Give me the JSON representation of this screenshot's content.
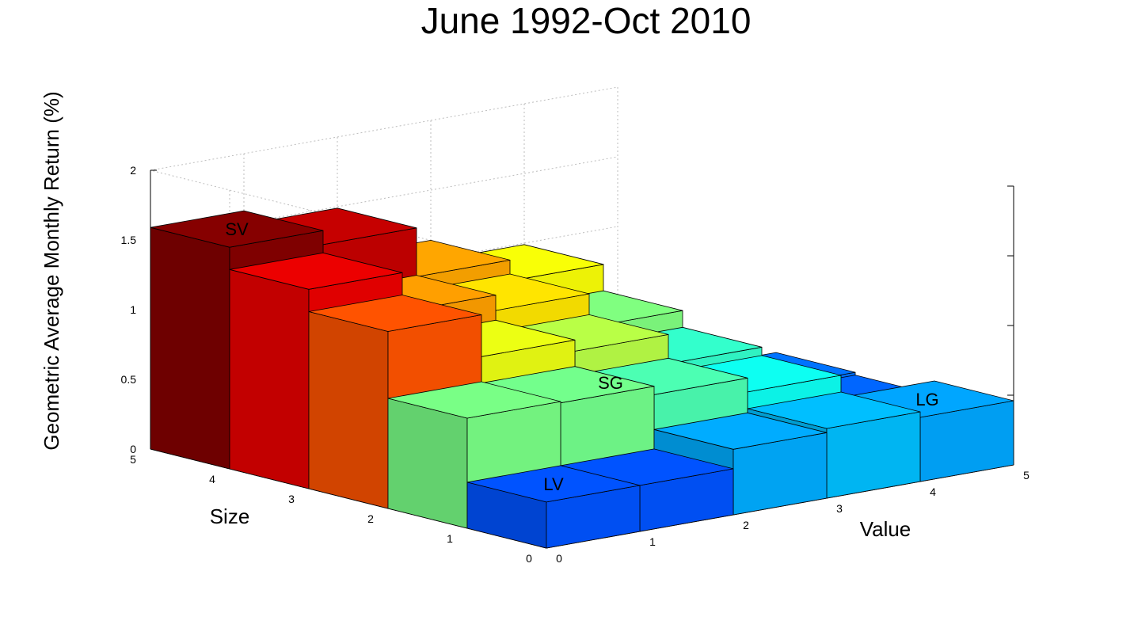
{
  "chart_data": {
    "type": "bar3d",
    "title": "June 1992-Oct 2010",
    "zlabel": "Geometric Average Monthly Return (%)",
    "size_label": "Size",
    "value_label": "Value",
    "size_ticks": [
      "0",
      "1",
      "2",
      "3",
      "4",
      "5"
    ],
    "value_ticks": [
      "0",
      "1",
      "2",
      "3",
      "4",
      "5"
    ],
    "z_ticks": [
      "0",
      "0.5",
      "1",
      "1.5",
      "2"
    ],
    "zlim": [
      0,
      2
    ],
    "rows_are": "size quintile (1 = small ... 5 = large)",
    "cols_are": "value quintile (1 = growth ... 5 = value)",
    "values": [
      [
        0.01,
        0.99,
        1.14,
        1.49,
        1.59
      ],
      [
        0.28,
        0.8,
        1.04,
        1.15,
        1.43
      ],
      [
        0.38,
        0.68,
        0.89,
        0.97,
        1.27
      ],
      [
        0.36,
        0.62,
        0.72,
        0.78,
        0.79
      ],
      [
        0.46,
        0.5,
        0.47,
        0.33,
        0.33
      ]
    ],
    "colormap": "jet",
    "annotations": [
      {
        "text": "SG",
        "size": 1,
        "value": 1
      },
      {
        "text": "SV",
        "size": 1,
        "value": 5
      },
      {
        "text": "LG",
        "size": 5,
        "value": 1
      },
      {
        "text": "LV",
        "size": 5,
        "value": 5
      }
    ]
  }
}
